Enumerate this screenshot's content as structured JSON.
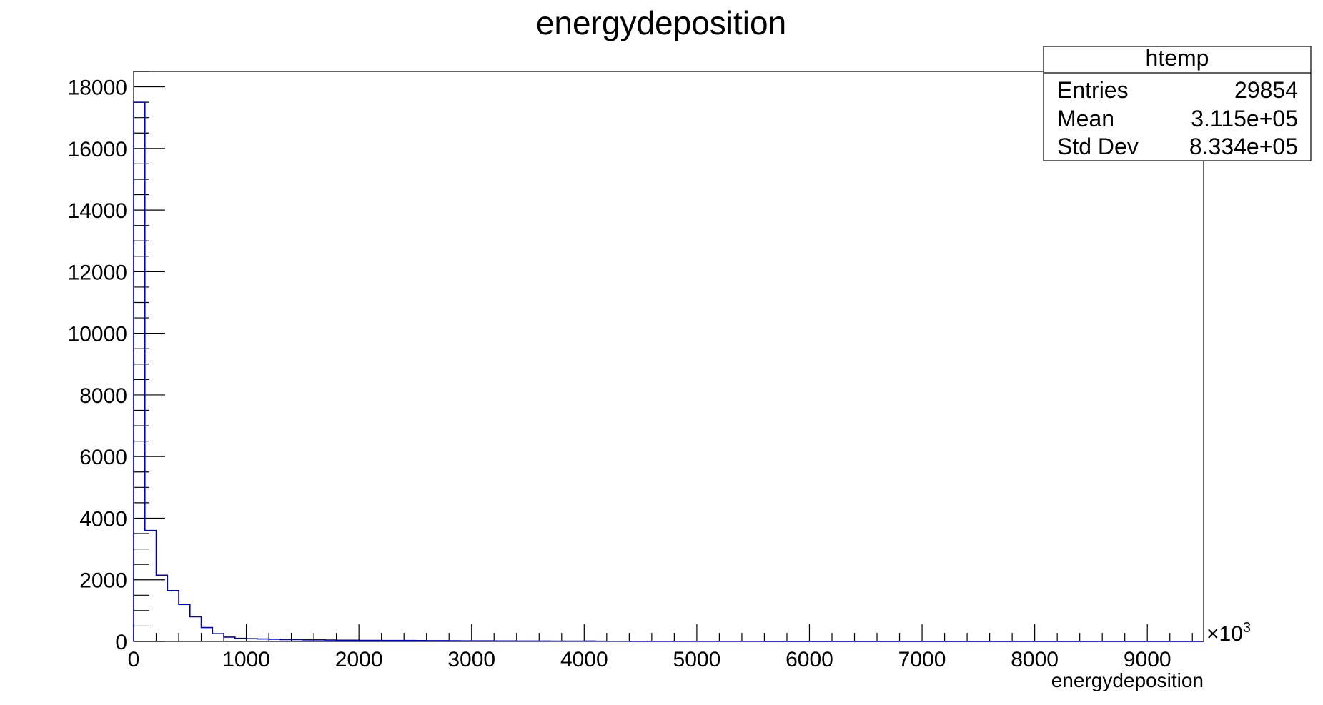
{
  "chart_data": {
    "type": "bar",
    "title": "energydeposition",
    "xlabel": "energydeposition",
    "ylabel": "",
    "x_multiplier": "×10",
    "x_multiplier_exp": "3",
    "xlim": [
      0,
      9500
    ],
    "ylim": [
      0,
      18500
    ],
    "x_ticks": [
      0,
      1000,
      2000,
      3000,
      4000,
      5000,
      6000,
      7000,
      8000,
      9000
    ],
    "y_ticks": [
      0,
      2000,
      4000,
      6000,
      8000,
      10000,
      12000,
      14000,
      16000,
      18000
    ],
    "bin_width": 100,
    "bins_start": 0,
    "values": [
      17500,
      3600,
      2150,
      1650,
      1200,
      800,
      450,
      250,
      140,
      100,
      90,
      80,
      70,
      60,
      60,
      50,
      50,
      45,
      40,
      40,
      35,
      35,
      30,
      30,
      30,
      28,
      26,
      24,
      22,
      20,
      20,
      18,
      16,
      15,
      14,
      12,
      12,
      10,
      10,
      10,
      12,
      8,
      6,
      6,
      5,
      5,
      4,
      4,
      4,
      3,
      3,
      3,
      3,
      3,
      3,
      3,
      2,
      2,
      2,
      2,
      2,
      2,
      1,
      1,
      1,
      1,
      1,
      1,
      1,
      1,
      1,
      1,
      1,
      1,
      1,
      0,
      0,
      0,
      0,
      0,
      0,
      0,
      0,
      0,
      0,
      0,
      0,
      0,
      0,
      0,
      0,
      0,
      0,
      0,
      0
    ],
    "line_color": "#0000cc",
    "legend_position": "top-right",
    "stats_box": {
      "name": "htemp",
      "rows": [
        {
          "label": "Entries",
          "value": "29854"
        },
        {
          "label": "Mean",
          "value": "3.115e+05"
        },
        {
          "label": "Std Dev",
          "value": "8.334e+05"
        }
      ]
    }
  }
}
